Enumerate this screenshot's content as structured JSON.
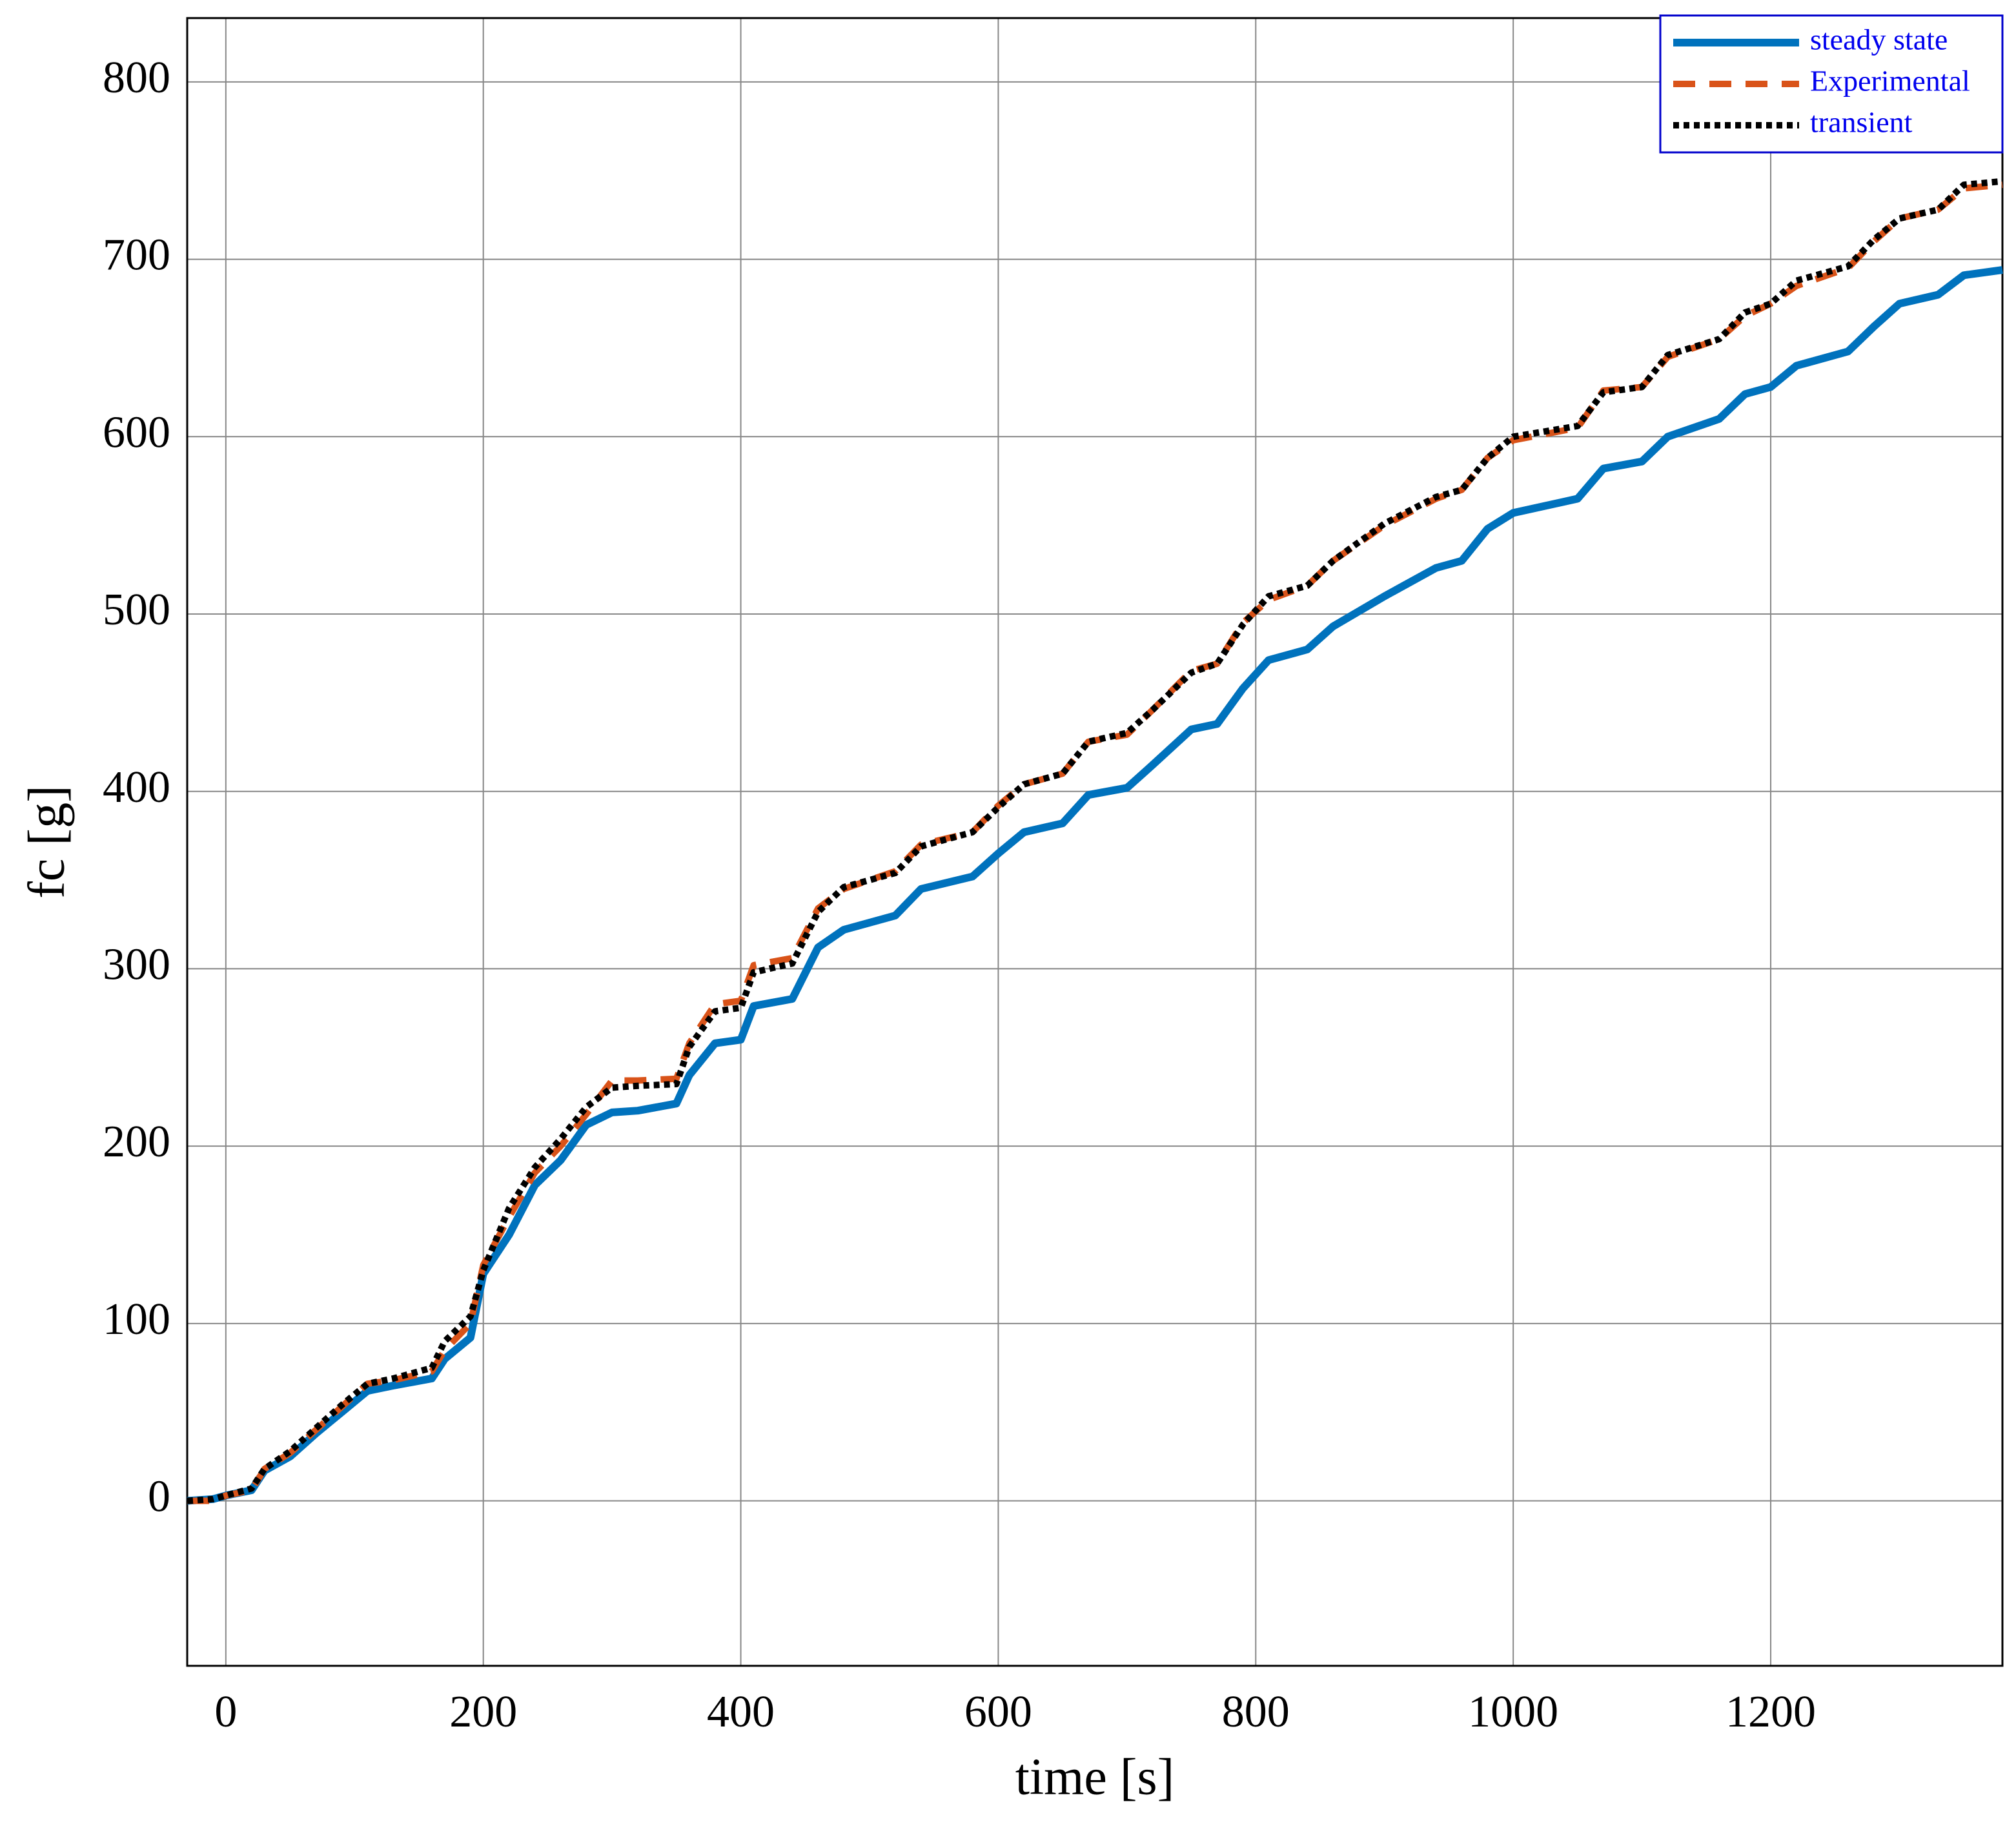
{
  "chart_data": {
    "type": "line",
    "xlabel": "time [s]",
    "ylabel": "fc [g]",
    "x": [
      -30,
      -10,
      0,
      20,
      30,
      50,
      70,
      90,
      110,
      130,
      160,
      170,
      190,
      200,
      220,
      240,
      260,
      280,
      300,
      320,
      350,
      360,
      380,
      400,
      410,
      440,
      460,
      480,
      520,
      540,
      580,
      600,
      620,
      650,
      670,
      700,
      720,
      750,
      770,
      790,
      810,
      840,
      860,
      900,
      940,
      960,
      980,
      1000,
      1050,
      1070,
      1100,
      1120,
      1160,
      1180,
      1200,
      1220,
      1260,
      1280,
      1300,
      1330,
      1350,
      1380
    ],
    "series": [
      {
        "name": "steady state",
        "color": "#0072bd",
        "style": "solid",
        "values": [
          0,
          1,
          3,
          6,
          17,
          25,
          38,
          50,
          62,
          65,
          69,
          80,
          92,
          128,
          150,
          178,
          192,
          212,
          219,
          220,
          224,
          240,
          258,
          260,
          279,
          283,
          312,
          322,
          330,
          345,
          352,
          365,
          377,
          382,
          398,
          402,
          415,
          435,
          438,
          458,
          474,
          480,
          493,
          510,
          526,
          530,
          548,
          557,
          565,
          582,
          586,
          600,
          610,
          624,
          628,
          640,
          648,
          662,
          675,
          680,
          691,
          694
        ]
      },
      {
        "name": "Experimental",
        "color": "#d95319",
        "style": "dashed",
        "values": [
          0,
          0,
          3,
          6,
          18,
          27,
          40,
          53,
          66,
          68,
          73,
          85,
          100,
          133,
          160,
          185,
          200,
          218,
          237,
          237,
          238,
          258,
          280,
          282,
          302,
          306,
          334,
          345,
          355,
          370,
          377,
          392,
          404,
          410,
          428,
          432,
          446,
          468,
          472,
          495,
          508,
          516,
          530,
          550,
          565,
          570,
          588,
          598,
          605,
          626,
          628,
          645,
          655,
          668,
          675,
          685,
          695,
          710,
          723,
          728,
          740,
          742
        ]
      },
      {
        "name": "transient",
        "color": "#000000",
        "style": "dotted",
        "values": [
          0,
          1,
          3,
          7,
          18,
          28,
          41,
          54,
          66,
          69,
          75,
          90,
          104,
          130,
          165,
          188,
          204,
          222,
          233,
          234,
          235,
          256,
          276,
          278,
          298,
          303,
          332,
          346,
          354,
          369,
          377,
          391,
          404,
          410,
          428,
          433,
          446,
          467,
          472,
          494,
          510,
          516,
          530,
          551,
          566,
          570,
          588,
          600,
          606,
          625,
          628,
          646,
          655,
          670,
          675,
          688,
          696,
          711,
          723,
          728,
          742,
          744
        ]
      }
    ],
    "xlim": [
      -30,
      1380
    ],
    "ylim": [
      -93,
      836
    ],
    "xticks": [
      0,
      200,
      400,
      600,
      800,
      1000,
      1200
    ],
    "yticks": [
      0,
      100,
      200,
      300,
      400,
      500,
      600,
      700,
      800
    ],
    "grid": true,
    "legend": "northeast"
  }
}
